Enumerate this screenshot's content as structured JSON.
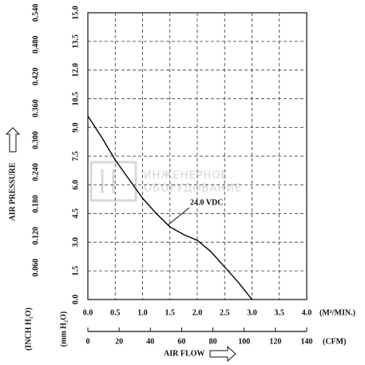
{
  "chart_data": {
    "type": "line",
    "y_label": "AIR PRESSURE",
    "y_unit_label": "(mm H₂O)",
    "y2_unit_label": "(INCH H₂O)",
    "x_unit_label": "(M³/MIN.)",
    "x2_unit_label": "(CFM)",
    "x_label": "AIR FLOW",
    "x": [
      0,
      0.25,
      0.5,
      0.75,
      1.0,
      1.25,
      1.5,
      1.75,
      2.0,
      2.25,
      2.5,
      2.75,
      3.0
    ],
    "series": [
      {
        "name": "24.0 VDC",
        "color": "#000000",
        "values": [
          9.6,
          8.5,
          7.3,
          6.3,
          5.3,
          4.5,
          3.8,
          3.4,
          3.1,
          2.5,
          1.7,
          0.9,
          0
        ]
      }
    ],
    "xlim": [
      0,
      4
    ],
    "xticks": [
      {
        "value": 0,
        "label": "0.0"
      },
      0.5,
      {
        "value": 1,
        "label": "1.0"
      },
      1.5,
      {
        "value": 2,
        "label": "2.0"
      },
      2.5,
      {
        "value": 3,
        "label": "3.0"
      },
      3.5,
      {
        "value": 4,
        "label": "4.0"
      }
    ],
    "x2lim": [
      0,
      140
    ],
    "x2ticks": [
      0,
      20,
      40,
      60,
      80,
      100,
      120,
      140
    ],
    "ylim": [
      0,
      15
    ],
    "yticks": [
      {
        "value": 0,
        "label": "0.0"
      },
      1.5,
      {
        "value": 3,
        "label": "3.0"
      },
      4.5,
      {
        "value": 6,
        "label": "6.0"
      },
      7.5,
      {
        "value": 9,
        "label": "9.0"
      },
      10.5,
      {
        "value": 12,
        "label": "12.0"
      },
      13.5,
      {
        "value": 15,
        "label": "15.0"
      }
    ],
    "y2lim": [
      0,
      0.54
    ],
    "y2ticks": [
      {
        "value": 0.06,
        "label": "0.060"
      },
      {
        "value": 0.12,
        "label": "0.120"
      },
      {
        "value": 0.18,
        "label": "0.180"
      },
      {
        "value": 0.24,
        "label": "0.240"
      },
      {
        "value": 0.3,
        "label": "0.300"
      },
      {
        "value": 0.36,
        "label": "0.360"
      },
      {
        "value": 0.42,
        "label": "0.420"
      },
      {
        "value": 0.48,
        "label": "0.480"
      },
      {
        "value": 0.54,
        "label": "0.540"
      }
    ],
    "grid": true,
    "watermark": [
      "ИНЖЕНЕРНОЕ",
      "ОБОРУДОВАНИЕ"
    ]
  }
}
